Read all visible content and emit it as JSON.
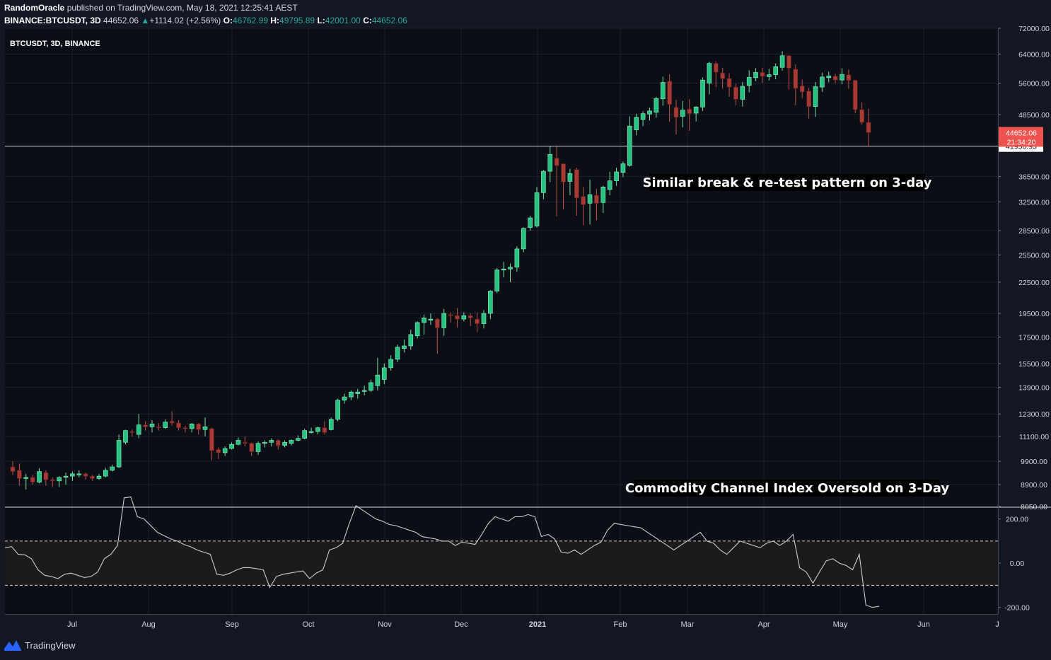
{
  "header": {
    "author": "RandomOracle",
    "published": "published on TradingView.com, May 18, 2021 12:25:41 AEST",
    "symbol": "BINANCE:BTCUSDT, 3D",
    "last": "44652.06",
    "change": "+1114.02 (+2.56%)",
    "o_label": "O:",
    "o": "46762.99",
    "h_label": "H:",
    "h": "49795.89",
    "l_label": "L:",
    "l": "42001.00",
    "c_label": "C:",
    "c": "44652.06"
  },
  "footer": {
    "brand": "TradingView"
  },
  "colors": {
    "background": "#131722",
    "up": "#26c281",
    "down": "#a83a36",
    "line": "#cccccc",
    "price_tag": "#ef5350"
  },
  "chart_data": [
    {
      "type": "candlestick",
      "title": "BTCUSDT, 3D, BINANCE",
      "scale": "log",
      "ylim": [
        8050,
        72000
      ],
      "y_ticks": [
        72000,
        64000,
        56000,
        48500,
        41950.95,
        36500,
        32500,
        28500,
        25500,
        22500,
        19500,
        17500,
        15500,
        13900,
        12300,
        11100,
        9900,
        8900,
        8050
      ],
      "y_tick_labels": [
        "72000.00",
        "64000.00",
        "56000.00",
        "48500.00",
        "41950.95",
        "36500.00",
        "32500.00",
        "28500.00",
        "25500.00",
        "22500.00",
        "19500.00",
        "17500.00",
        "15500.00",
        "13900.00",
        "12300.00",
        "11100.00",
        "9900.00",
        "8900.00",
        "8050.00"
      ],
      "x_labels": [
        "Jul",
        "Aug",
        "Sep",
        "Oct",
        "Nov",
        "Dec",
        "2021",
        "Feb",
        "Mar",
        "Apr",
        "May",
        "Jun",
        "J"
      ],
      "last_price_label": "44652.06",
      "countdown_label": "21:34:20",
      "horizontal_line": {
        "value": 41950.95,
        "label": "41950.95"
      },
      "annotation": "Similar break & re-test pattern on 3-day",
      "candles": [
        [
          9650,
          9450,
          9900,
          9300
        ],
        [
          9500,
          9150,
          9800,
          8850
        ],
        [
          9150,
          9200,
          9350,
          8700
        ],
        [
          9200,
          9000,
          9300,
          8900
        ],
        [
          9000,
          9450,
          9600,
          8950
        ],
        [
          9400,
          9100,
          9500,
          8850
        ],
        [
          9100,
          9050,
          9200,
          8800
        ],
        [
          9050,
          9200,
          9250,
          8800
        ],
        [
          9200,
          9250,
          9400,
          8900
        ],
        [
          9250,
          9350,
          9450,
          9050
        ],
        [
          9300,
          9350,
          9500,
          9200
        ],
        [
          9350,
          9250,
          9400,
          9100
        ],
        [
          9250,
          9150,
          9300,
          9050
        ],
        [
          9150,
          9250,
          9350,
          9100
        ],
        [
          9250,
          9500,
          9600,
          9200
        ],
        [
          9500,
          9650,
          9750,
          9450
        ],
        [
          9650,
          10900,
          11200,
          9600
        ],
        [
          10800,
          11400,
          11450,
          10700
        ],
        [
          11350,
          11300,
          11450,
          11100
        ],
        [
          11200,
          11700,
          12300,
          11000
        ],
        [
          11700,
          11600,
          11900,
          11400
        ],
        [
          11600,
          11750,
          11950,
          11300
        ],
        [
          11600,
          11550,
          11800,
          11400
        ],
        [
          11550,
          11850,
          12000,
          11500
        ],
        [
          11900,
          11800,
          12450,
          11650
        ],
        [
          11800,
          11550,
          11950,
          11400
        ],
        [
          11550,
          11500,
          11650,
          11300
        ],
        [
          11500,
          11750,
          11800,
          11300
        ],
        [
          11750,
          11450,
          11800,
          11200
        ],
        [
          11450,
          11600,
          12100,
          11100
        ],
        [
          11500,
          10400,
          11550,
          9950
        ],
        [
          10450,
          10300,
          10550,
          10000
        ],
        [
          10300,
          10500,
          10600,
          10150
        ],
        [
          10500,
          10700,
          10800,
          10450
        ],
        [
          10700,
          10900,
          11050,
          10650
        ],
        [
          10800,
          10750,
          11100,
          10600
        ],
        [
          10750,
          10350,
          10800,
          10150
        ],
        [
          10350,
          10750,
          10850,
          10200
        ],
        [
          10750,
          10800,
          10900,
          10550
        ],
        [
          10800,
          10900,
          11000,
          10600
        ],
        [
          10900,
          10650,
          10950,
          10450
        ],
        [
          10650,
          10800,
          10900,
          10550
        ],
        [
          10750,
          10900,
          10950,
          10650
        ],
        [
          10900,
          11000,
          11150,
          10850
        ],
        [
          11000,
          11400,
          11500,
          10950
        ],
        [
          11350,
          11350,
          11550,
          11250
        ],
        [
          11350,
          11550,
          11600,
          11200
        ],
        [
          11550,
          11300,
          11900,
          11200
        ],
        [
          11450,
          12000,
          12100,
          11400
        ],
        [
          12000,
          13100,
          13200,
          11900
        ],
        [
          13100,
          13300,
          13500,
          12900
        ],
        [
          13300,
          13600,
          13700,
          13100
        ],
        [
          13500,
          13600,
          13800,
          13200
        ],
        [
          13650,
          13700,
          14000,
          13400
        ],
        [
          13700,
          14200,
          14400,
          13600
        ],
        [
          14000,
          14700,
          15900,
          13700
        ],
        [
          14400,
          15200,
          15500,
          14100
        ],
        [
          15200,
          15800,
          16100,
          15000
        ],
        [
          15800,
          16700,
          16900,
          15600
        ],
        [
          16600,
          16800,
          17300,
          16300
        ],
        [
          16800,
          17700,
          18100,
          16500
        ],
        [
          17600,
          18700,
          18800,
          17400
        ],
        [
          18700,
          19100,
          19400,
          17700
        ],
        [
          18900,
          19000,
          19500,
          18500
        ],
        [
          19000,
          18250,
          19100,
          16200
        ],
        [
          18250,
          19500,
          19900,
          17600
        ],
        [
          19400,
          19300,
          19600,
          18700
        ],
        [
          19300,
          19000,
          20000,
          18300
        ],
        [
          19000,
          19300,
          19600,
          18800
        ],
        [
          19300,
          19100,
          19500,
          18400
        ],
        [
          19000,
          18600,
          19600,
          17900
        ],
        [
          18600,
          19500,
          19800,
          18200
        ],
        [
          19500,
          21600,
          21700,
          19000
        ],
        [
          21600,
          23800,
          24000,
          21400
        ],
        [
          23800,
          23900,
          24700,
          23000
        ],
        [
          23900,
          24100,
          24500,
          22500
        ],
        [
          24100,
          26200,
          26500,
          23600
        ],
        [
          26200,
          28800,
          28900,
          25800
        ],
        [
          28900,
          30200,
          30500,
          28500
        ],
        [
          29100,
          33900,
          34800,
          28900
        ],
        [
          33900,
          37400,
          37600,
          32900
        ],
        [
          37400,
          40400,
          41900,
          35600
        ],
        [
          39700,
          38400,
          41900,
          30400
        ],
        [
          38700,
          35600,
          38100,
          31400
        ],
        [
          35700,
          37000,
          37800,
          33500
        ],
        [
          37700,
          33100,
          38000,
          30500
        ],
        [
          33300,
          32100,
          34800,
          29200
        ],
        [
          32300,
          33600,
          36000,
          29300
        ],
        [
          33500,
          32300,
          34500,
          29900
        ],
        [
          32400,
          34800,
          35000,
          30900
        ],
        [
          34400,
          35800,
          37300,
          33500
        ],
        [
          35800,
          37300,
          38000,
          35000
        ],
        [
          37200,
          38700,
          39100,
          36400
        ],
        [
          38400,
          46000,
          48100,
          38200
        ],
        [
          45200,
          47900,
          48700,
          44100
        ],
        [
          47400,
          48700,
          49200,
          46000
        ],
        [
          48600,
          49300,
          50000,
          47200
        ],
        [
          49000,
          52200,
          52600,
          47800
        ],
        [
          52100,
          56200,
          57700,
          50500
        ],
        [
          56500,
          50800,
          58300,
          46900
        ],
        [
          50100,
          47900,
          51900,
          44300
        ],
        [
          48100,
          49500,
          51600,
          45700
        ],
        [
          49700,
          48700,
          52000,
          45000
        ],
        [
          48800,
          50200,
          50400,
          47000
        ],
        [
          50200,
          56800,
          57500,
          49300
        ],
        [
          56000,
          61300,
          61700,
          53200
        ],
        [
          61300,
          58900,
          61900,
          55000
        ],
        [
          58700,
          57200,
          60100,
          54600
        ],
        [
          57200,
          55000,
          58600,
          52600
        ],
        [
          55000,
          52000,
          55800,
          50600
        ],
        [
          52000,
          55200,
          56300,
          50300
        ],
        [
          55400,
          57500,
          59400,
          53700
        ],
        [
          57400,
          58800,
          60000,
          56500
        ],
        [
          58800,
          57800,
          60100,
          56100
        ],
        [
          57700,
          58200,
          59800,
          56700
        ],
        [
          58200,
          60400,
          61300,
          57000
        ],
        [
          60200,
          63500,
          64800,
          59300
        ],
        [
          63500,
          60000,
          63700,
          54400
        ],
        [
          59700,
          54700,
          61000,
          50600
        ],
        [
          55300,
          53800,
          56900,
          52300
        ],
        [
          54000,
          50300,
          54800,
          47600
        ],
        [
          50300,
          55100,
          56300,
          48000
        ],
        [
          55000,
          57600,
          58800,
          53800
        ],
        [
          57400,
          57900,
          59000,
          56200
        ],
        [
          57800,
          56800,
          58500,
          56000
        ],
        [
          56800,
          58300,
          59900,
          55700
        ],
        [
          58200,
          56700,
          59600,
          54600
        ],
        [
          56700,
          49600,
          56900,
          48800
        ],
        [
          49600,
          46800,
          51300,
          46300
        ],
        [
          46800,
          44650,
          49800,
          42000
        ]
      ]
    },
    {
      "type": "line",
      "title": "Commodity Channel Index Oversold on 3-Day",
      "ylim": [
        -230,
        250
      ],
      "y_ticks": [
        200,
        0,
        -200
      ],
      "y_tick_labels": [
        "200.00",
        "0.00",
        "-200.00"
      ],
      "bands": [
        100,
        -100
      ],
      "values": [
        70,
        75,
        40,
        38,
        20,
        -30,
        -55,
        -60,
        -70,
        -50,
        -45,
        -55,
        -65,
        -60,
        -40,
        20,
        40,
        80,
        295,
        300,
        210,
        200,
        170,
        140,
        125,
        110,
        100,
        85,
        75,
        60,
        50,
        40,
        -50,
        -55,
        -45,
        -30,
        -20,
        -20,
        -25,
        -30,
        -110,
        -60,
        -50,
        -45,
        -40,
        -35,
        -70,
        -45,
        -30,
        60,
        70,
        90,
        180,
        260,
        240,
        220,
        200,
        190,
        175,
        170,
        160,
        150,
        140,
        120,
        115,
        110,
        100,
        100,
        80,
        95,
        90,
        85,
        130,
        180,
        210,
        200,
        190,
        210,
        210,
        220,
        210,
        120,
        130,
        110,
        50,
        45,
        60,
        40,
        60,
        80,
        95,
        150,
        180,
        175,
        170,
        165,
        160,
        140,
        120,
        100,
        80,
        60,
        80,
        100,
        120,
        140,
        100,
        90,
        60,
        40,
        70,
        100,
        90,
        80,
        70,
        90,
        100,
        80,
        100,
        130,
        -20,
        -40,
        -90,
        -40,
        10,
        20,
        0,
        -10,
        -30,
        40,
        -190,
        -200,
        -195
      ],
      "series": [
        {
          "name": "",
          "color": "#cccccc"
        }
      ]
    }
  ]
}
